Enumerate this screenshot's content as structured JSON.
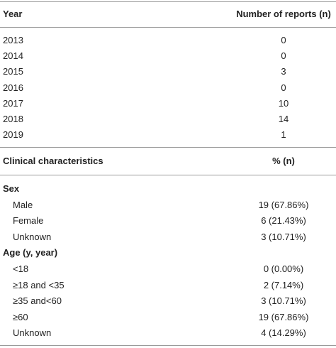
{
  "table1": {
    "header": [
      "Year",
      "Number of reports (n)"
    ],
    "rows": [
      [
        "2013",
        "0"
      ],
      [
        "2014",
        "0"
      ],
      [
        "2015",
        "3"
      ],
      [
        "2016",
        "0"
      ],
      [
        "2017",
        "10"
      ],
      [
        "2018",
        "14"
      ],
      [
        "2019",
        "1"
      ]
    ]
  },
  "table2": {
    "header": [
      "Clinical characteristics",
      "% (n)"
    ],
    "sections": [
      {
        "title": "Sex",
        "rows": [
          [
            "Male",
            "19 (67.86%)"
          ],
          [
            "Female",
            "6 (21.43%)"
          ],
          [
            "Unknown",
            "3 (10.71%)"
          ]
        ]
      },
      {
        "title": "Age (y, year)",
        "rows": [
          [
            "<18",
            "0 (0.00%)"
          ],
          [
            "≥18 and <35",
            "2 (7.14%)"
          ],
          [
            "≥35 and<60",
            "3 (10.71%)"
          ],
          [
            "≥60",
            "19 (67.86%)"
          ],
          [
            "Unknown",
            "4 (14.29%)"
          ]
        ]
      }
    ]
  }
}
